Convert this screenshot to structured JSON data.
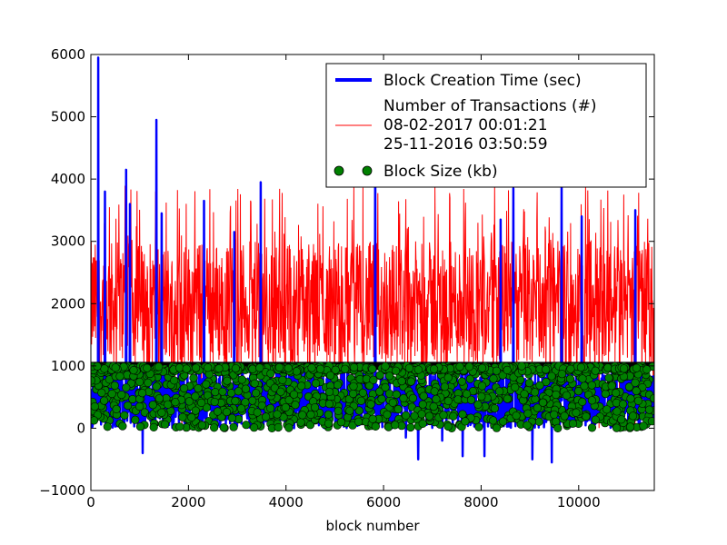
{
  "chart_data": {
    "type": "line",
    "title": "",
    "xlabel": "block number",
    "ylabel": "",
    "xlim": [
      0,
      11550
    ],
    "ylim": [
      -1000,
      6000
    ],
    "x_ticks": [
      0,
      2000,
      4000,
      6000,
      8000,
      10000
    ],
    "y_ticks": [
      -1000,
      0,
      1000,
      2000,
      3000,
      4000,
      5000,
      6000
    ],
    "grid": false,
    "legend_position": "upper-right",
    "series": [
      {
        "name": "Block Creation Time (sec)",
        "kind": "line",
        "color": "#0000ff",
        "x": [
          150,
          290,
          720,
          800,
          1060,
          1340,
          1450,
          2320,
          2940,
          3480,
          5830,
          6460,
          6710,
          7200,
          7620,
          8070,
          8400,
          8660,
          9050,
          9450,
          9650,
          10060,
          11160
        ],
        "y": [
          5950,
          3800,
          4150,
          3600,
          -400,
          4950,
          3450,
          3650,
          3150,
          3950,
          4700,
          -150,
          -500,
          -200,
          -450,
          -450,
          3350,
          3850,
          -500,
          -550,
          3950,
          3400,
          3500
        ],
        "peak_points": [
          {
            "x": 150,
            "y": 5950
          },
          {
            "x": 1340,
            "y": 4950
          },
          {
            "x": 5830,
            "y": 4700
          }
        ],
        "typical_range": [
          0,
          1000
        ]
      },
      {
        "name": "Number of Transactions (#)",
        "kind": "line",
        "color": "#ff0000",
        "typical_range": [
          1000,
          3000
        ],
        "max_observed": 3900,
        "x": [
          0,
          500,
          1000,
          1500,
          2000,
          2500,
          3000,
          3500,
          4000,
          4500,
          5000,
          5500,
          6000,
          6500,
          7000,
          7500,
          8000,
          8500,
          9000,
          9500,
          10000,
          10500,
          11000,
          11500
        ],
        "y": [
          2500,
          3200,
          2800,
          3600,
          2700,
          3300,
          2900,
          3500,
          3200,
          3000,
          3400,
          3100,
          3700,
          3200,
          3500,
          3300,
          3600,
          3400,
          3200,
          3600,
          3300,
          3500,
          3400,
          3000
        ]
      },
      {
        "name": "08-02-2017 00:01:21",
        "kind": "legend-only"
      },
      {
        "name": "25-11-2016 03:50:59",
        "kind": "legend-only"
      },
      {
        "name": "Block Size (kb)",
        "kind": "scatter",
        "color": "#008000",
        "typical_range": [
          0,
          999
        ],
        "max_observed": 999
      }
    ],
    "legend": [
      {
        "label": "Block Creation Time (sec)",
        "style": "line-thick",
        "color": "#0000ff"
      },
      {
        "label": "Number of Transactions (#)",
        "style": "line-thin",
        "color": "#ff0000"
      },
      {
        "label": "08-02-2017 00:01:21",
        "style": "text"
      },
      {
        "label": "25-11-2016 03:50:59",
        "style": "text"
      },
      {
        "label": "Block Size (kb)",
        "style": "markers",
        "color": "#008000"
      }
    ]
  }
}
